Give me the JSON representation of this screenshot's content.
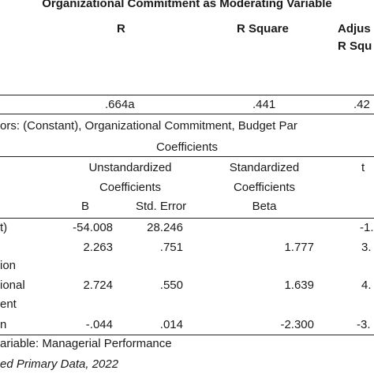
{
  "model_summary": {
    "title": "Organizational Commitment as Moderating Variable",
    "headers": {
      "r": "R",
      "r_square": "R Square",
      "adj_line1": "Adjus",
      "adj_line2": "R Squ"
    },
    "row": {
      "r": ".664a",
      "r_square": ".441",
      "adj": ".42"
    },
    "predictors_note": "ors: (Constant), Organizational Commitment, Budget Par"
  },
  "coefficients": {
    "title": "Coefficients",
    "headers": {
      "unstd_line1": "Unstandardized",
      "unstd_line2": "Coefficients",
      "b": "B",
      "std_error": "Std. Error",
      "std_line1": "Standardized",
      "std_line2": "Coefficients",
      "beta": "Beta",
      "t": "t"
    },
    "rows": [
      {
        "label": "t)",
        "b": "-54.008",
        "se": "28.246",
        "beta": "",
        "t": "-1."
      },
      {
        "label": "",
        "b": "2.263",
        "se": ".751",
        "beta": "1.777",
        "t": "3."
      },
      {
        "label": "ion",
        "b": "",
        "se": "",
        "beta": "",
        "t": ""
      },
      {
        "label": "ional",
        "b": "2.724",
        "se": ".550",
        "beta": "1.639",
        "t": "4."
      },
      {
        "label": "ent",
        "b": "",
        "se": "",
        "beta": "",
        "t": ""
      },
      {
        "label": "n",
        "b": "-.044",
        "se": ".014",
        "beta": "-2.300",
        "t": "-3."
      }
    ],
    "dependent_note": "ariable: Managerial Performance"
  },
  "source_note": "ed Primary Data, 2022"
}
